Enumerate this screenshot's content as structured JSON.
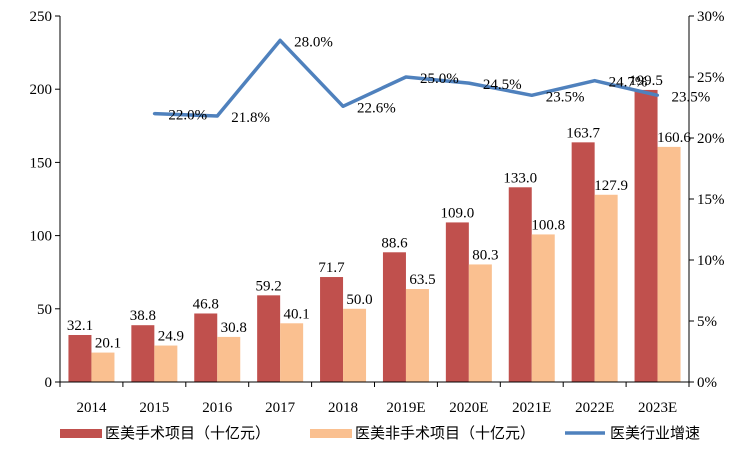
{
  "chart_data": {
    "type": "bar",
    "categories": [
      "2014",
      "2015",
      "2016",
      "2017",
      "2018",
      "2019E",
      "2020E",
      "2021E",
      "2022E",
      "2023E"
    ],
    "series": [
      {
        "name": "医美手术项目（十亿元）",
        "type": "bar",
        "axis": "left",
        "color": "#c0504d",
        "values": [
          32.1,
          38.8,
          46.8,
          59.2,
          71.7,
          88.6,
          109.0,
          133.0,
          163.7,
          199.5
        ],
        "labels": [
          "32.1",
          "38.8",
          "46.8",
          "59.2",
          "71.7",
          "88.6",
          "109.0",
          "133.0",
          "163.7",
          "199.5"
        ]
      },
      {
        "name": "医美非手术项目（十亿元）",
        "type": "bar",
        "axis": "left",
        "color": "#fac090",
        "values": [
          20.1,
          24.9,
          30.8,
          40.1,
          50.0,
          63.5,
          80.3,
          100.8,
          127.9,
          160.6
        ],
        "labels": [
          "20.1",
          "24.9",
          "30.8",
          "40.1",
          "50.0",
          "63.5",
          "80.3",
          "100.8",
          "127.9",
          "160.6"
        ]
      },
      {
        "name": "医美行业增速",
        "type": "line",
        "axis": "right",
        "color": "#4f81bd",
        "values": [
          null,
          22.0,
          21.8,
          28.0,
          22.6,
          25.0,
          24.5,
          23.5,
          24.7,
          23.5
        ],
        "labels": [
          null,
          "22.0%",
          "21.8%",
          "28.0%",
          "22.6%",
          "25.0%",
          "24.5%",
          "23.5%",
          "24.7%",
          "23.5%"
        ]
      }
    ],
    "y_left": {
      "min": 0,
      "max": 250,
      "ticks": [
        "0",
        "50",
        "100",
        "150",
        "200",
        "250"
      ]
    },
    "y_right": {
      "min": 0,
      "max": 30,
      "ticks": [
        "0%",
        "5%",
        "10%",
        "15%",
        "20%",
        "25%",
        "30%"
      ]
    },
    "title": "",
    "xlabel": "",
    "ylabel": "",
    "grid": false,
    "legend": {
      "position": "bottom"
    }
  }
}
